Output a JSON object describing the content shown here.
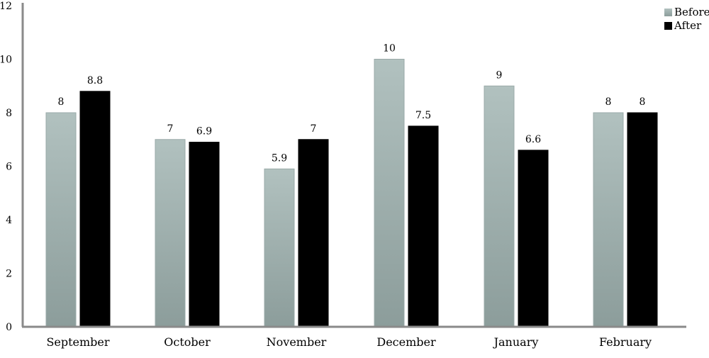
{
  "chart_data": {
    "type": "bar",
    "categories": [
      "September",
      "October",
      "November",
      "December",
      "January",
      "February"
    ],
    "series": [
      {
        "name": "Before",
        "values": [
          8,
          7,
          5.9,
          10,
          9,
          8
        ],
        "labels": [
          "8",
          "7",
          "5.9",
          "10",
          "9",
          "8"
        ],
        "color": "#a7b7b5"
      },
      {
        "name": "After",
        "values": [
          8.8,
          6.9,
          7,
          7.5,
          6.6,
          8
        ],
        "labels": [
          "8.8",
          "6.9",
          "7",
          "7.5",
          "6.6",
          "8"
        ],
        "color": "#000000"
      }
    ],
    "yticks": [
      "0",
      "2",
      "4",
      "6",
      "8",
      "10",
      "12"
    ],
    "ylim": [
      0,
      12
    ],
    "grid": false,
    "legend": "top-right"
  }
}
